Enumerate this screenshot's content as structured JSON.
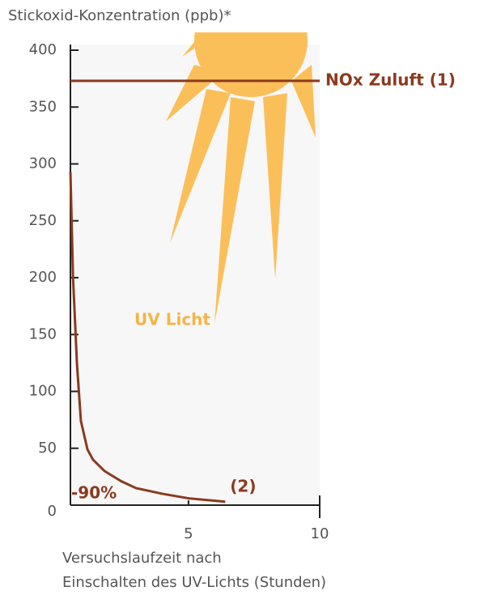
{
  "chart_data": {
    "type": "line",
    "y_label": "Stickoxid-Konzentration (ppb)*",
    "x_label": [
      "Versuchslaufzeit nach",
      "Einschalten des UV-Lichts (Stunden)"
    ],
    "annotations": [
      "UV Licht",
      "-90%"
    ],
    "series": [
      {
        "name": "NOx Zuluft (1)",
        "color": "#8b3a1e",
        "x": [
          0.5,
          10
        ],
        "values": [
          373,
          373
        ]
      },
      {
        "name": "(2)",
        "color": "#8b3a1e",
        "x": [
          0.5,
          0.6,
          0.75,
          0.9,
          1.15,
          1.36,
          1.8,
          2.44,
          3,
          4,
          5,
          6.4
        ],
        "values": [
          293,
          200,
          124,
          74,
          49,
          40,
          30,
          21,
          15,
          10,
          6,
          3
        ]
      }
    ],
    "xlim": [
      0.5,
      10
    ],
    "xticks": [
      5,
      10
    ],
    "ylim": [
      0,
      400
    ],
    "yticks": [
      0,
      50,
      100,
      150,
      200,
      250,
      300,
      350,
      400
    ]
  }
}
